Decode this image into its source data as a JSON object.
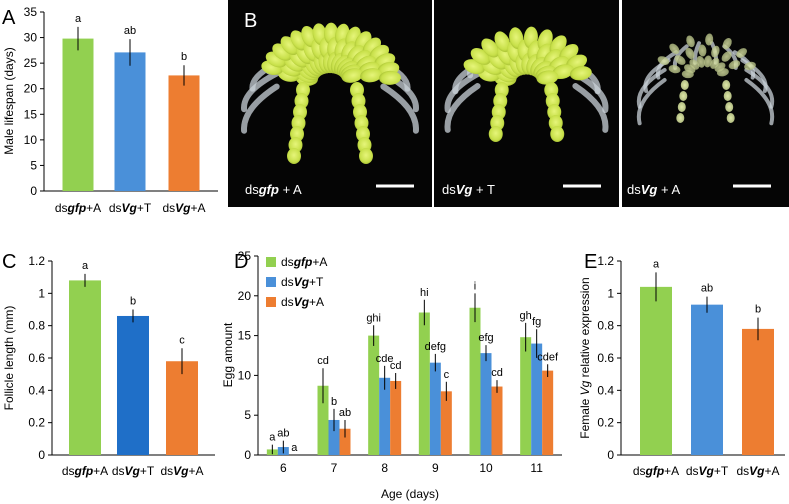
{
  "colors": {
    "gfpA": "#92d050",
    "vgT": "#4a90d9",
    "vgA": "#ed7d31",
    "vgTdark": "#1f6fc8"
  },
  "chart_data": [
    {
      "panel": "A",
      "type": "bar",
      "categories": [
        [
          "ds",
          "gfp",
          "+A"
        ],
        [
          "ds",
          "Vg",
          "+T"
        ],
        [
          "ds",
          "Vg",
          "+A"
        ]
      ],
      "values": [
        29.8,
        27.1,
        22.6
      ],
      "errors": [
        2.3,
        2.6,
        2.0
      ],
      "letters": [
        "a",
        "ab",
        "b"
      ],
      "ylabel": "Male lifespan (days)",
      "ylim": [
        0,
        35
      ],
      "yticks": [
        0,
        5,
        10,
        15,
        20,
        25,
        30,
        35
      ]
    },
    {
      "panel": "B",
      "type": "image",
      "labels": [
        [
          "ds",
          "gfp",
          " + A"
        ],
        [
          "ds",
          "Vg",
          " + T"
        ],
        [
          "ds",
          "Vg",
          " + A"
        ]
      ]
    },
    {
      "panel": "C",
      "type": "bar",
      "categories": [
        [
          "ds",
          "gfp",
          "+A"
        ],
        [
          "ds",
          "Vg",
          "+T"
        ],
        [
          "ds",
          "Vg",
          "+A"
        ]
      ],
      "values": [
        1.08,
        0.86,
        0.58
      ],
      "errors": [
        0.04,
        0.04,
        0.08
      ],
      "letters": [
        "a",
        "b",
        "c"
      ],
      "ylabel": "Follicle length (mm)",
      "ylim": [
        0,
        1.2
      ],
      "yticks": [
        "0",
        "0.2",
        "0.4",
        "0.6",
        "0.8",
        "1",
        "1.2"
      ]
    },
    {
      "panel": "D",
      "type": "bar",
      "categories": [
        "6",
        "7",
        "8",
        "9",
        "10",
        "11"
      ],
      "series": [
        {
          "name": [
            "ds",
            "gfp",
            "+A"
          ],
          "values": [
            0.7,
            8.7,
            15.0,
            17.9,
            18.5,
            14.8
          ],
          "errors": [
            0.6,
            2.2,
            1.3,
            1.6,
            1.8,
            1.8
          ],
          "letters": [
            "a",
            "cd",
            "ghi",
            "hi",
            "i",
            "gh"
          ]
        },
        {
          "name": [
            "ds",
            "Vg",
            "+T"
          ],
          "values": [
            1.0,
            4.4,
            9.7,
            11.6,
            12.8,
            14.0
          ],
          "errors": [
            0.8,
            1.4,
            1.5,
            1.1,
            1.0,
            1.8
          ],
          "letters": [
            "ab",
            "b",
            "cde",
            "defg",
            "efg",
            "fg"
          ]
        },
        {
          "name": [
            "ds",
            "Vg",
            "+A"
          ],
          "values": [
            0,
            3.3,
            9.3,
            8.0,
            8.6,
            10.6
          ],
          "errors": [
            0,
            1.1,
            1.0,
            1.2,
            0.8,
            0.8
          ],
          "letters": [
            "a",
            "ab",
            "cd",
            "c",
            "cd",
            "cdef"
          ]
        }
      ],
      "xlabel": "Age (days)",
      "ylabel": "Egg amount",
      "ylim": [
        0,
        25
      ],
      "yticks": [
        0,
        5,
        10,
        15,
        20,
        25
      ]
    },
    {
      "panel": "E",
      "type": "bar",
      "categories": [
        [
          "ds",
          "gfp",
          "+A"
        ],
        [
          "ds",
          "Vg",
          "+T"
        ],
        [
          "ds",
          "Vg",
          "+A"
        ]
      ],
      "values": [
        1.04,
        0.93,
        0.78
      ],
      "errors": [
        0.09,
        0.05,
        0.07
      ],
      "letters": [
        "a",
        "ab",
        "b"
      ],
      "ylabel": [
        "Female ",
        "Vg",
        " relative expression"
      ],
      "ylim": [
        0,
        1.2
      ],
      "yticks": [
        "0",
        "0.2",
        "0.4",
        "0.6",
        "0.8",
        "1",
        "1.2"
      ]
    }
  ]
}
